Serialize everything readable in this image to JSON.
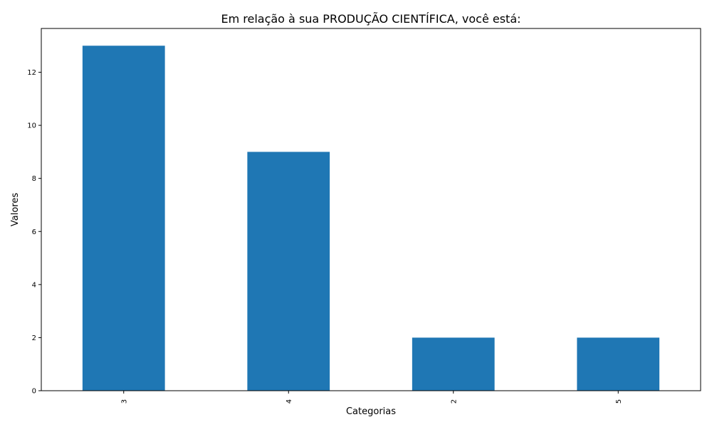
{
  "chart_data": {
    "type": "bar",
    "title": "Em relação à sua PRODUÇÃO CIENTÍFICA, você está:",
    "xlabel": "Categorias",
    "ylabel": "Valores",
    "categories": [
      "3",
      "4",
      "2",
      "5"
    ],
    "values": [
      13,
      9,
      2,
      2
    ],
    "ylim": [
      0,
      13.65
    ],
    "yticks": [
      0,
      2,
      4,
      6,
      8,
      10,
      12
    ],
    "bar_color": "#1f77b4",
    "grid": false,
    "legend": "none"
  }
}
